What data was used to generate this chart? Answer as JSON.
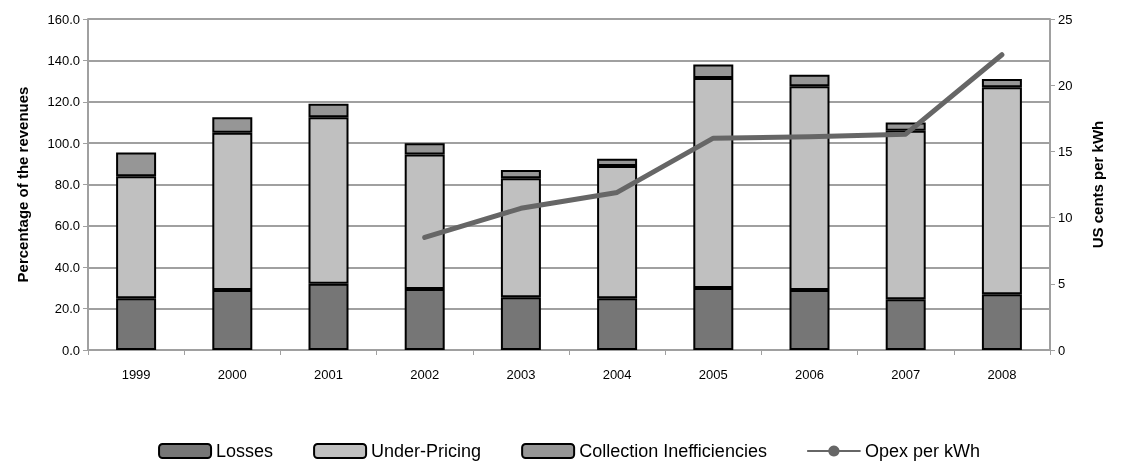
{
  "chart_data": {
    "type": "bar",
    "stacked": true,
    "ylabel": "Percentage of the revenues",
    "y2label": "US cents per kWh",
    "categories": [
      "1999",
      "2000",
      "2001",
      "2002",
      "2003",
      "2004",
      "2005",
      "2006",
      "2007",
      "2008"
    ],
    "series": [
      {
        "name": "Losses",
        "color": "#767676",
        "values": [
          25,
          29,
          32,
          29.5,
          25.5,
          25,
          30,
          29,
          24.5,
          27
        ]
      },
      {
        "name": "Under-Pricing",
        "color": "#c0c0c0",
        "values": [
          59,
          76,
          80.5,
          65,
          57.5,
          64,
          101.5,
          98.5,
          81.5,
          100
        ]
      },
      {
        "name": "Collection Inefficiencies",
        "color": "#969696",
        "values": [
          11.5,
          7.5,
          6.5,
          5.5,
          4,
          3.5,
          6.5,
          5.5,
          4,
          4
        ]
      },
      {
        "name": "Opex per kWh",
        "type": "line",
        "axis": "y2",
        "color": "#666666",
        "marker": "none",
        "values": [
          null,
          null,
          null,
          8.5,
          10.7,
          11.9,
          16.0,
          16.1,
          16.3,
          22.3
        ]
      }
    ],
    "ylim": [
      0,
      160
    ],
    "yticks": [
      {
        "value": 0,
        "label": "0.0"
      },
      {
        "value": 20,
        "label": "20.0"
      },
      {
        "value": 40,
        "label": "40.0"
      },
      {
        "value": 60,
        "label": "60.0"
      },
      {
        "value": 80,
        "label": "80.0"
      },
      {
        "value": 100,
        "label": "100.0"
      },
      {
        "value": 120,
        "label": "120.0"
      },
      {
        "value": 140,
        "label": "140.0"
      },
      {
        "value": 160,
        "label": "160.0"
      }
    ],
    "y2lim": [
      0,
      25
    ],
    "y2ticks": [
      0,
      5,
      10,
      15,
      20,
      25
    ],
    "grid": "y",
    "legend": "bottom"
  }
}
